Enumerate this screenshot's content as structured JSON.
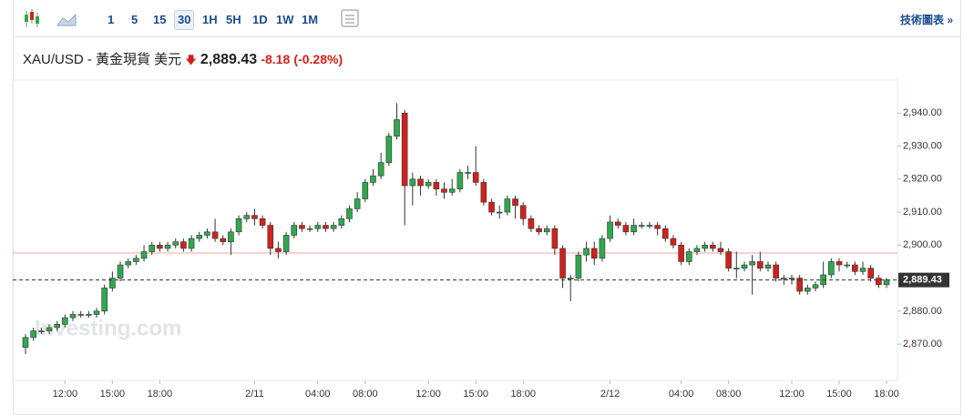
{
  "toolbar": {
    "timeframes": [
      "1",
      "5",
      "15",
      "30",
      "1H",
      "5H",
      "1D",
      "1W",
      "1M"
    ],
    "active": "30",
    "link": "技術圖表 »"
  },
  "header": {
    "symbol": "XAU/USD - 黃金現貨 美元",
    "price": "2,889.43",
    "change": "-8.18",
    "change_pct": "(-0.28%)"
  },
  "watermark": "Investing.com",
  "chart_data": {
    "type": "candlestick",
    "up_color": "#2fa84f",
    "down_color": "#d0221c",
    "categories": [
      null,
      null,
      null,
      null,
      null,
      "12:00",
      null,
      null,
      null,
      null,
      null,
      "15:00",
      null,
      null,
      null,
      null,
      null,
      "18:00",
      null,
      null,
      null,
      null,
      null,
      null,
      null,
      null,
      null,
      null,
      null,
      "2/11",
      null,
      null,
      null,
      null,
      null,
      null,
      null,
      "04:00",
      null,
      null,
      null,
      null,
      null,
      "08:00",
      null,
      null,
      null,
      null,
      null,
      null,
      null,
      "12:00",
      null,
      null,
      null,
      null,
      null,
      "15:00",
      null,
      null,
      null,
      null,
      null,
      "18:00",
      null,
      null,
      null,
      null,
      null,
      null,
      null,
      null,
      null,
      null,
      "2/12",
      null,
      null,
      null,
      null,
      null,
      null,
      null,
      null,
      "04:00",
      null,
      null,
      null,
      null,
      null,
      "08:00",
      null,
      null,
      null,
      null,
      null,
      null,
      null,
      "12:00",
      null,
      null,
      null,
      null,
      null,
      "15:00",
      null,
      null,
      null,
      null,
      null,
      "18:00"
    ],
    "open": [
      2869,
      2872,
      2874,
      2874,
      2875,
      2876,
      2878,
      2879,
      2879,
      2879,
      2880,
      2887,
      2890,
      2894,
      2895,
      2896,
      2898,
      2900,
      2899,
      2900,
      2901,
      2899,
      2902,
      2903,
      2904,
      2902,
      2901,
      2904,
      2908,
      2909,
      2908,
      2906,
      2899,
      2898,
      2903,
      2906,
      2905,
      2905,
      2906,
      2905,
      2906,
      2908,
      2911,
      2914,
      2919,
      2921,
      2925,
      2933,
      2940,
      2918,
      2920,
      2918,
      2919,
      2917,
      2916,
      2917,
      2922,
      2922,
      2919,
      2913,
      2910,
      2910,
      2914,
      2912,
      2908,
      2905,
      2904,
      2905,
      2899,
      2890,
      2890,
      2897,
      2899,
      2896,
      2902,
      2907,
      2906,
      2904,
      2906,
      2906,
      2906,
      2905,
      2902,
      2900,
      2895,
      2898,
      2899,
      2900,
      2899,
      2898,
      2893,
      2893,
      2894,
      2895,
      2893,
      2894,
      2890,
      2890,
      2890,
      2886,
      2887,
      2888,
      2891,
      2895,
      2894,
      2894,
      2892,
      2893,
      2890,
      2888
    ],
    "high": [
      2873,
      2875,
      2875,
      2876,
      2877,
      2879,
      2880,
      2880,
      2880,
      2881,
      2888,
      2892,
      2895,
      2896,
      2897,
      2900,
      2901,
      2901,
      2901,
      2902,
      2902,
      2903,
      2904,
      2905,
      2908,
      2903,
      2905,
      2909,
      2910,
      2911,
      2909,
      2907,
      2901,
      2904,
      2907,
      2907,
      2906,
      2907,
      2907,
      2907,
      2909,
      2912,
      2916,
      2920,
      2923,
      2928,
      2934,
      2943,
      2941,
      2922,
      2921,
      2920,
      2920,
      2919,
      2920,
      2923,
      2924,
      2930,
      2920,
      2914,
      2912,
      2915,
      2915,
      2913,
      2909,
      2906,
      2906,
      2906,
      2900,
      2891,
      2898,
      2901,
      2901,
      2903,
      2909,
      2908,
      2907,
      2908,
      2907,
      2907,
      2907,
      2906,
      2903,
      2901,
      2899,
      2900,
      2901,
      2901,
      2901,
      2899,
      2898,
      2895,
      2897,
      2898,
      2895,
      2895,
      2891,
      2891,
      2891,
      2888,
      2889,
      2895,
      2896,
      2896,
      2895,
      2895,
      2895,
      2894,
      2891,
      2890
    ],
    "low": [
      2867,
      2871,
      2873,
      2873,
      2874,
      2875,
      2877,
      2878,
      2878,
      2878,
      2879,
      2886,
      2889,
      2893,
      2894,
      2895,
      2897,
      2898,
      2898,
      2899,
      2898,
      2898,
      2901,
      2902,
      2901,
      2900,
      2897,
      2903,
      2907,
      2906,
      2905,
      2897,
      2896,
      2897,
      2902,
      2904,
      2904,
      2904,
      2904,
      2904,
      2905,
      2907,
      2910,
      2913,
      2918,
      2920,
      2924,
      2932,
      2906,
      2912,
      2915,
      2917,
      2915,
      2914,
      2915,
      2916,
      2920,
      2918,
      2912,
      2909,
      2908,
      2909,
      2908,
      2906,
      2904,
      2903,
      2903,
      2897,
      2887,
      2883,
      2889,
      2895,
      2894,
      2895,
      2901,
      2905,
      2903,
      2903,
      2905,
      2905,
      2903,
      2901,
      2899,
      2894,
      2894,
      2897,
      2898,
      2898,
      2897,
      2892,
      2890,
      2892,
      2885,
      2892,
      2892,
      2889,
      2888,
      2888,
      2885,
      2885,
      2886,
      2887,
      2890,
      2892,
      2893,
      2891,
      2891,
      2889,
      2887,
      2887
    ],
    "close": [
      2872,
      2874,
      2874,
      2875,
      2876,
      2878,
      2879,
      2879,
      2879,
      2880,
      2887,
      2890,
      2894,
      2895,
      2896,
      2898,
      2900,
      2899,
      2900,
      2901,
      2899,
      2902,
      2903,
      2904,
      2902,
      2901,
      2904,
      2908,
      2909,
      2908,
      2906,
      2899,
      2898,
      2903,
      2906,
      2905,
      2905,
      2906,
      2905,
      2906,
      2908,
      2911,
      2914,
      2919,
      2921,
      2925,
      2933,
      2938,
      2918,
      2920,
      2918,
      2919,
      2917,
      2916,
      2917,
      2922,
      2922,
      2919,
      2913,
      2910,
      2910,
      2914,
      2912,
      2908,
      2905,
      2904,
      2905,
      2899,
      2890,
      2890,
      2897,
      2899,
      2896,
      2902,
      2907,
      2906,
      2904,
      2906,
      2906,
      2906,
      2905,
      2902,
      2900,
      2895,
      2898,
      2899,
      2900,
      2899,
      2898,
      2893,
      2893,
      2894,
      2895,
      2893,
      2894,
      2890,
      2890,
      2890,
      2886,
      2887,
      2888,
      2891,
      2895,
      2894,
      2894,
      2892,
      2893,
      2890,
      2888,
      2889.43
    ],
    "ylim": [
      2859,
      2950
    ],
    "yticks": [
      {
        "value": 2870,
        "label": "2,870.00"
      },
      {
        "value": 2880,
        "label": "2,880.00"
      },
      {
        "value": 2890,
        "label": "2,890.00"
      },
      {
        "value": 2900,
        "label": "2,900.00"
      },
      {
        "value": 2910,
        "label": "2,910.00"
      },
      {
        "value": 2920,
        "label": "2,920.00"
      },
      {
        "value": 2930,
        "label": "2,930.00"
      },
      {
        "value": 2940,
        "label": "2,940.00"
      }
    ],
    "last_price": {
      "value": 2889.43,
      "label": "2,889.43"
    },
    "previous_close": 2897.61
  }
}
